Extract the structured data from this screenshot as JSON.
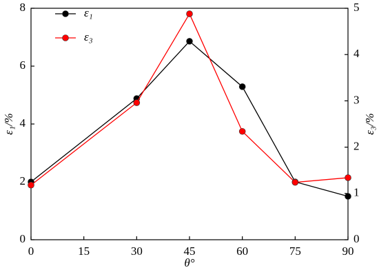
{
  "chart_data": {
    "type": "line",
    "xlabel": "θ°",
    "ylabel": "ε₁/%",
    "y2label": "ε₃/%",
    "x": [
      0,
      30,
      45,
      60,
      75,
      90
    ],
    "xlim": [
      0,
      90
    ],
    "xticks": [
      0,
      15,
      30,
      45,
      60,
      75,
      90
    ],
    "ylim": [
      0,
      8
    ],
    "yticks": [
      0,
      2,
      4,
      6,
      8
    ],
    "y2lim": [
      0,
      5
    ],
    "y2ticks": [
      0,
      1,
      2,
      3,
      4,
      5
    ],
    "legend": "upper left",
    "series": [
      {
        "name": "ε₁",
        "color": "#000000",
        "values": [
          2.0,
          4.88,
          6.86,
          5.29,
          2.0,
          1.5
        ]
      },
      {
        "name": "ε₃",
        "color": "#ff0000",
        "axis": "y2",
        "values": [
          1.18,
          2.96,
          4.88,
          2.34,
          1.24,
          1.34
        ]
      }
    ]
  }
}
